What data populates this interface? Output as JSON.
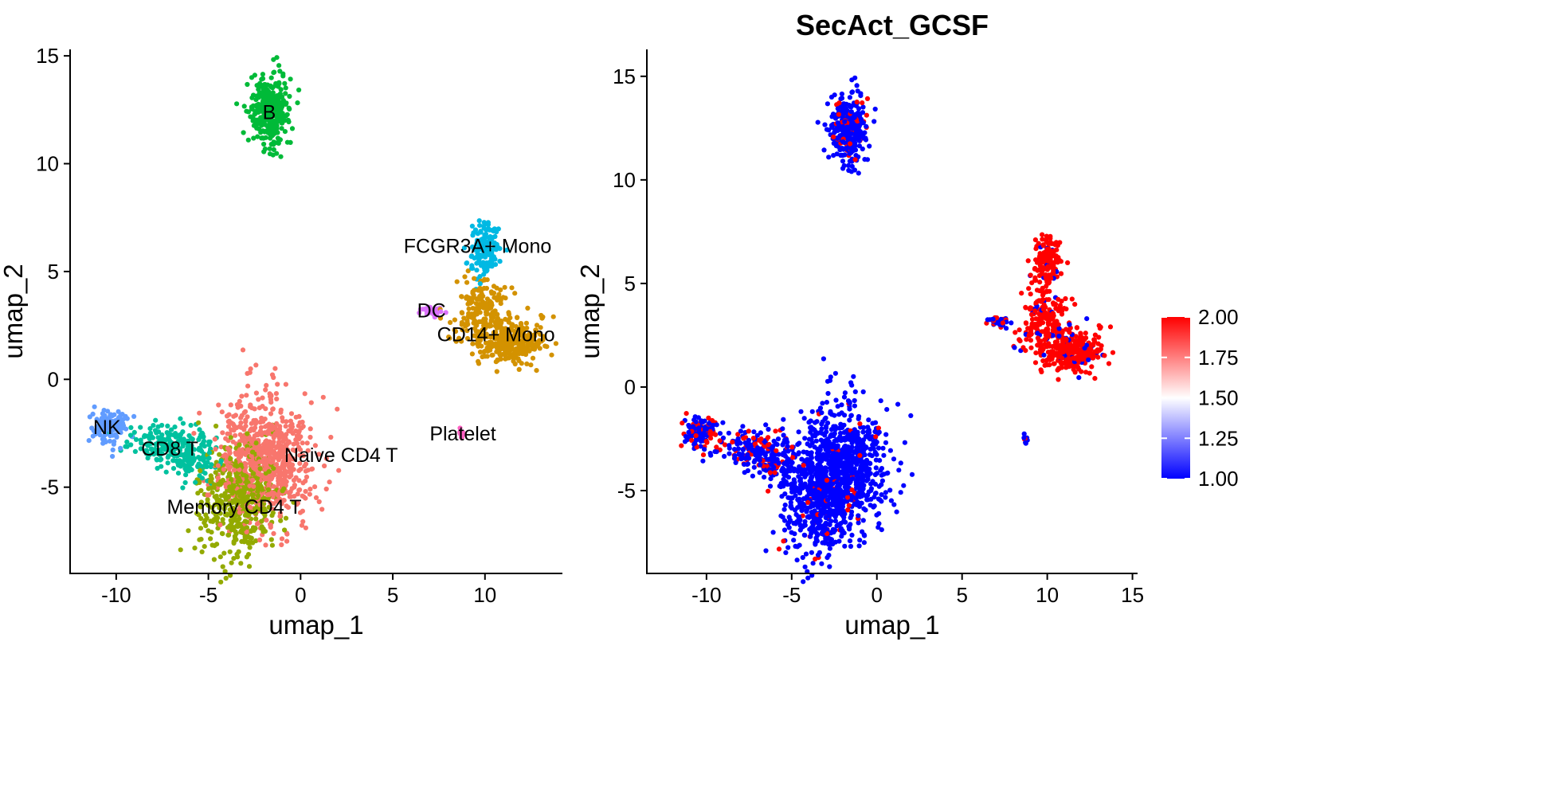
{
  "chart_data": [
    {
      "type": "scatter",
      "title": "",
      "xlabel": "umap_1",
      "ylabel": "umap_2",
      "xlim": [
        -12.5,
        14.2
      ],
      "ylim": [
        -9.0,
        15.3
      ],
      "xticks": [
        -10,
        -5,
        0,
        5,
        10
      ],
      "yticks": [
        -5,
        0,
        5,
        10,
        15
      ],
      "grid": false,
      "legend": "none",
      "clusters": [
        {
          "name": "Naive CD4 T",
          "color": "#F8766D",
          "n": 720,
          "label_pos": [
            2.2,
            -3.5
          ],
          "blobs": [
            {
              "center": [
                -1.9,
                -3.7
              ],
              "sd": [
                1.25,
                1.45
              ],
              "n": 720
            }
          ]
        },
        {
          "name": "CD14+ Mono",
          "color": "#D39200",
          "n": 480,
          "label_pos": [
            10.6,
            2.1
          ],
          "blobs": [
            {
              "center": [
                9.8,
                3.1
              ],
              "sd": [
                0.8,
                0.9
              ],
              "n": 220
            },
            {
              "center": [
                11.6,
                1.7
              ],
              "sd": [
                0.85,
                0.5
              ],
              "n": 260
            }
          ]
        },
        {
          "name": "Memory CD4 T",
          "color": "#93AA00",
          "n": 480,
          "label_pos": [
            -3.6,
            -5.9
          ],
          "blobs": [
            {
              "center": [
                -3.4,
                -5.6
              ],
              "sd": [
                1.05,
                1.25
              ],
              "n": 480
            }
          ]
        },
        {
          "name": "B",
          "color": "#00BA38",
          "n": 340,
          "label_pos": [
            -1.7,
            12.4
          ],
          "blobs": [
            {
              "center": [
                -1.7,
                12.4
              ],
              "sd": [
                0.55,
                0.8
              ],
              "n": 340
            }
          ]
        },
        {
          "name": "CD8 T",
          "color": "#00C19F",
          "n": 260,
          "label_pos": [
            -7.1,
            -3.2
          ],
          "blobs": [
            {
              "center": [
                -7.2,
                -3.0
              ],
              "sd": [
                1.1,
                0.55
              ],
              "n": 160
            },
            {
              "center": [
                -5.9,
                -3.7
              ],
              "sd": [
                0.6,
                0.5
              ],
              "n": 100
            }
          ]
        },
        {
          "name": "FCGR3A+ Mono",
          "color": "#00B9E3",
          "n": 140,
          "label_pos": [
            9.6,
            6.2
          ],
          "blobs": [
            {
              "center": [
                10.0,
                6.0
              ],
              "sd": [
                0.4,
                0.6
              ],
              "n": 140
            }
          ]
        },
        {
          "name": "NK",
          "color": "#619CFF",
          "n": 140,
          "label_pos": [
            -10.5,
            -2.2
          ],
          "blobs": [
            {
              "center": [
                -10.3,
                -2.2
              ],
              "sd": [
                0.45,
                0.4
              ],
              "n": 140
            }
          ]
        },
        {
          "name": "DC",
          "color": "#DB72FB",
          "n": 30,
          "label_pos": [
            7.1,
            3.2
          ],
          "blobs": [
            {
              "center": [
                7.1,
                3.15
              ],
              "sd": [
                0.3,
                0.1
              ],
              "n": 30
            }
          ]
        },
        {
          "name": "Platelet",
          "color": "#FF61C3",
          "n": 12,
          "label_pos": [
            8.8,
            -2.5
          ],
          "blobs": [
            {
              "center": [
                8.7,
                -2.5
              ],
              "sd": [
                0.06,
                0.08
              ],
              "n": 12
            }
          ]
        }
      ]
    },
    {
      "type": "scatter",
      "title": "SecAct_GCSF",
      "xlabel": "umap_1",
      "ylabel": "umap_2",
      "xlim": [
        -13.5,
        15.3
      ],
      "ylim": [
        -9.0,
        16.3
      ],
      "xticks": [
        -10,
        -5,
        0,
        5,
        10,
        15
      ],
      "yticks": [
        -5,
        0,
        5,
        10,
        15
      ],
      "grid": false,
      "color_scale": {
        "low": 1.0,
        "high": 2.0,
        "mid": 1.5,
        "low_color": "#0000FF",
        "mid_color": "#FFFFFF",
        "high_color": "#FF0000",
        "ticks": [
          "2.00",
          "1.75",
          "1.50",
          "1.25",
          "1.00"
        ],
        "legend_placement": "right"
      },
      "value_by_cluster": {
        "Naive CD4 T": 0.04,
        "CD14+ Mono": 0.9,
        "Memory CD4 T": 0.04,
        "B": 0.15,
        "CD8 T": 0.2,
        "FCGR3A+ Mono": 0.95,
        "NK": 0.3,
        "DC": 0.3,
        "Platelet": 0.3
      }
    }
  ]
}
